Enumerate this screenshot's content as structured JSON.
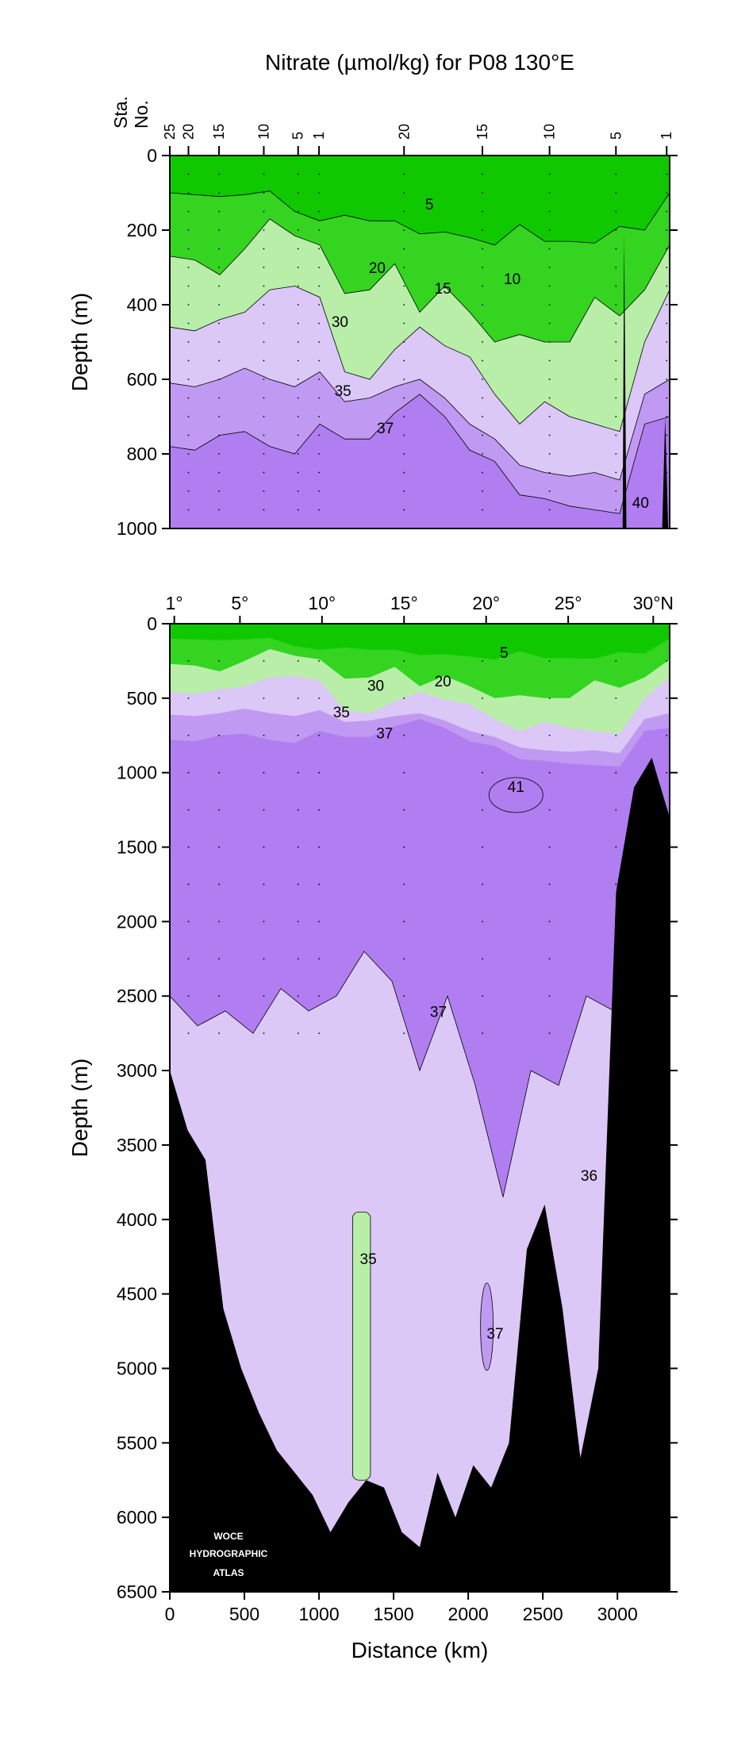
{
  "title": "Nitrate (µmol/kg) for P08 130°E",
  "station_axis": {
    "label_top": "Sta.",
    "label_bottom": "No.",
    "stations": [
      {
        "label": "25",
        "km": 0
      },
      {
        "label": "20",
        "km": 125
      },
      {
        "label": "15",
        "km": 330
      },
      {
        "label": "10",
        "km": 630
      },
      {
        "label": "5",
        "km": 860
      },
      {
        "label": "1",
        "km": 1000
      },
      {
        "label": "20",
        "km": 1570
      },
      {
        "label": "15",
        "km": 2095
      },
      {
        "label": "10",
        "km": 2545
      },
      {
        "label": "5",
        "km": 2990
      },
      {
        "label": "1",
        "km": 3330
      }
    ]
  },
  "latitude_axis": {
    "ticks": [
      {
        "label": "1°",
        "km": 30
      },
      {
        "label": "5°",
        "km": 470
      },
      {
        "label": "10°",
        "km": 1020
      },
      {
        "label": "15°",
        "km": 1570
      },
      {
        "label": "20°",
        "km": 2120
      },
      {
        "label": "25°",
        "km": 2670
      },
      {
        "label": "30°N",
        "km": 3240
      }
    ]
  },
  "colors": {
    "green_dark": "#0fc800",
    "green_mid": "#34d420",
    "green_light": "#b8eea8",
    "purple_light": "#dcc8f7",
    "purple_mid": "#c09af2",
    "purple_dark": "#b07ef0",
    "bathymetry": "#000000"
  },
  "logo": {
    "lines": [
      "WOCE",
      "HYDROGRAPHIC",
      "ATLAS"
    ]
  },
  "chart_data": [
    {
      "type": "contour",
      "panel": "upper",
      "ylabel": "Depth (m)",
      "xlim": [
        0,
        3350
      ],
      "ylim": [
        1000,
        0
      ],
      "yticks": [
        0,
        200,
        400,
        600,
        800,
        1000
      ],
      "contour_levels": [
        5,
        10,
        15,
        20,
        25,
        30,
        35,
        37,
        40
      ],
      "contour_labels": [
        {
          "text": "5",
          "km": 1740,
          "depth": 145
        },
        {
          "text": "20",
          "km": 1390,
          "depth": 315
        },
        {
          "text": "15",
          "km": 1830,
          "depth": 370
        },
        {
          "text": "10",
          "km": 2295,
          "depth": 345
        },
        {
          "text": "30",
          "km": 1140,
          "depth": 460
        },
        {
          "text": "35",
          "km": 1160,
          "depth": 645
        },
        {
          "text": "37",
          "km": 1445,
          "depth": 745
        },
        {
          "text": "40",
          "km": 3155,
          "depth": 945
        }
      ],
      "bands": [
        {
          "name": "green_dark",
          "boundary_depths": [
            100,
            105,
            110,
            105,
            95,
            150,
            175,
            160,
            175,
            175,
            210,
            205,
            220,
            240,
            185,
            230,
            230,
            235,
            190,
            200,
            100
          ]
        },
        {
          "name": "green_mid",
          "boundary_depths": [
            270,
            280,
            320,
            250,
            170,
            215,
            240,
            370,
            360,
            290,
            420,
            350,
            420,
            500,
            480,
            500,
            500,
            380,
            430,
            360,
            240
          ]
        },
        {
          "name": "green_light",
          "boundary_depths": [
            460,
            470,
            440,
            420,
            360,
            350,
            380,
            580,
            600,
            520,
            460,
            510,
            540,
            640,
            720,
            660,
            700,
            720,
            740,
            500,
            360
          ]
        },
        {
          "name": "purple_light",
          "boundary_depths": [
            610,
            620,
            600,
            570,
            600,
            620,
            580,
            660,
            650,
            620,
            600,
            650,
            720,
            760,
            830,
            850,
            860,
            850,
            870,
            640,
            600
          ]
        },
        {
          "name": "purple_mid",
          "boundary_depths": [
            780,
            790,
            750,
            740,
            780,
            800,
            720,
            760,
            760,
            690,
            640,
            700,
            790,
            820,
            910,
            920,
            940,
            950,
            960,
            720,
            700
          ]
        }
      ]
    },
    {
      "type": "contour",
      "panel": "lower",
      "ylabel": "Depth (m)",
      "xlabel": "Distance (km)",
      "xlim": [
        0,
        3350
      ],
      "ylim": [
        6500,
        0
      ],
      "xticks": [
        0,
        500,
        1000,
        1500,
        2000,
        2500,
        3000
      ],
      "yticks": [
        0,
        500,
        1000,
        1500,
        2000,
        2500,
        3000,
        3500,
        4000,
        4500,
        5000,
        5500,
        6000,
        6500
      ],
      "contour_labels": [
        {
          "text": "5",
          "km": 2240,
          "depth": 230
        },
        {
          "text": "30",
          "km": 1380,
          "depth": 450
        },
        {
          "text": "20",
          "km": 1830,
          "depth": 420
        },
        {
          "text": "35",
          "km": 1150,
          "depth": 630
        },
        {
          "text": "37",
          "km": 1440,
          "depth": 770
        },
        {
          "text": "41",
          "km": 2320,
          "depth": 1130
        },
        {
          "text": "37",
          "km": 1800,
          "depth": 2640
        },
        {
          "text": "36",
          "km": 2810,
          "depth": 3740
        },
        {
          "text": "35",
          "km": 1330,
          "depth": 4300
        },
        {
          "text": "37",
          "km": 2180,
          "depth": 4800
        }
      ],
      "deep_37_boundary_depths": [
        2500,
        2700,
        2600,
        2750,
        2450,
        2600,
        2500,
        2200,
        2400,
        3000,
        2500,
        3100,
        3850,
        3000,
        3100,
        2500,
        2600,
        2700,
        2800
      ],
      "bathymetry_depths": [
        3000,
        3400,
        3600,
        4600,
        5000,
        5300,
        5550,
        5700,
        5850,
        6100,
        5900,
        5750,
        5800,
        6100,
        6200,
        5700,
        6000,
        5650,
        5800,
        5500,
        4200,
        3900,
        4600,
        5600,
        5000,
        1800,
        1100,
        900,
        1300
      ]
    }
  ]
}
